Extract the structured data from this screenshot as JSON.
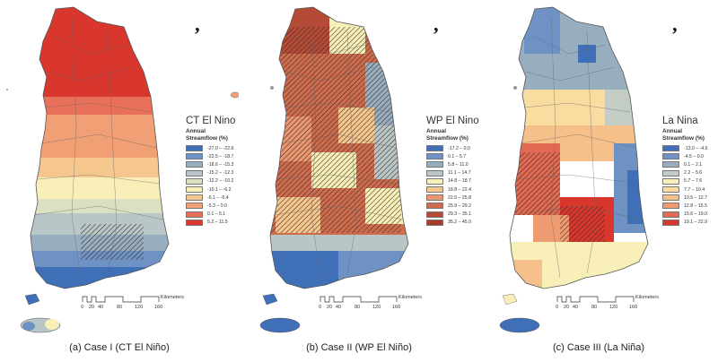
{
  "legend_heading": [
    "Annual",
    "Streamflow (%)"
  ],
  "scale": {
    "unit_label": "Kilometers",
    "ticks": [
      "0",
      "20",
      "40",
      "80",
      "120",
      "160"
    ]
  },
  "panels": [
    {
      "title": "CT El Nino",
      "caption": "(a) Case I (CT El Niño)",
      "legend": [
        {
          "range": "-27.0 – -22.6",
          "color": "#3f6fb6"
        },
        {
          "range": "-22.5 – -18.7",
          "color": "#6f92c4"
        },
        {
          "range": "-18.6 – -15.3",
          "color": "#97aebf"
        },
        {
          "range": "-15.2 – -12.3",
          "color": "#b9c6c7"
        },
        {
          "range": "-12.2 – -10.2",
          "color": "#dbe0c0"
        },
        {
          "range": "-10.1 – -6.2",
          "color": "#f8f0b8"
        },
        {
          "range": "-6.1 – -5.4",
          "color": "#f5c78e"
        },
        {
          "range": "-5.3 – 0.0",
          "color": "#f19f75"
        },
        {
          "range": "0.1 – 5.1",
          "color": "#e8705a"
        },
        {
          "range": "5.2 – 11.5",
          "color": "#d9362e"
        }
      ]
    },
    {
      "title": "WP El Nino",
      "caption": "(b) Case II (WP El Niño)",
      "legend": [
        {
          "range": "-17.2 – 0.0",
          "color": "#3f6fb6"
        },
        {
          "range": "0.1 – 5.7",
          "color": "#6f92c4"
        },
        {
          "range": "5.8 – 11.0",
          "color": "#97aebf"
        },
        {
          "range": "11.1 – 14.7",
          "color": "#b9c6c7"
        },
        {
          "range": "14.8 – 18.7",
          "color": "#f8f0b8"
        },
        {
          "range": "18.8 – 22.4",
          "color": "#f5c78e"
        },
        {
          "range": "22.5 – 25.8",
          "color": "#ea9670"
        },
        {
          "range": "25.9 – 29.2",
          "color": "#cf6c4e"
        },
        {
          "range": "29.3 – 35.1",
          "color": "#b54a36"
        },
        {
          "range": "35.2 – 45.0",
          "color": "#a83a2c"
        }
      ]
    },
    {
      "title": "La Nina",
      "caption": "(c) Case III (La Niña)",
      "legend": [
        {
          "range": "-13.0 – -4.6",
          "color": "#3f6fb6"
        },
        {
          "range": "-4.5 – 0.0",
          "color": "#6f92c4"
        },
        {
          "range": "0.1 – 2.1",
          "color": "#97aebf"
        },
        {
          "range": "2.2 – 5.6",
          "color": "#c3cdc6"
        },
        {
          "range": "5.7 – 7.6",
          "color": "#f8f0b8"
        },
        {
          "range": "7.7 – 10.4",
          "color": "#f8dca0"
        },
        {
          "range": "10.5 – 12.7",
          "color": "#f5c08a"
        },
        {
          "range": "12.8 – 15.5",
          "color": "#ef9b71"
        },
        {
          "range": "15.6 – 19.0",
          "color": "#e26a52"
        },
        {
          "range": "19.1 – 22.9",
          "color": "#d9362e"
        }
      ]
    }
  ]
}
